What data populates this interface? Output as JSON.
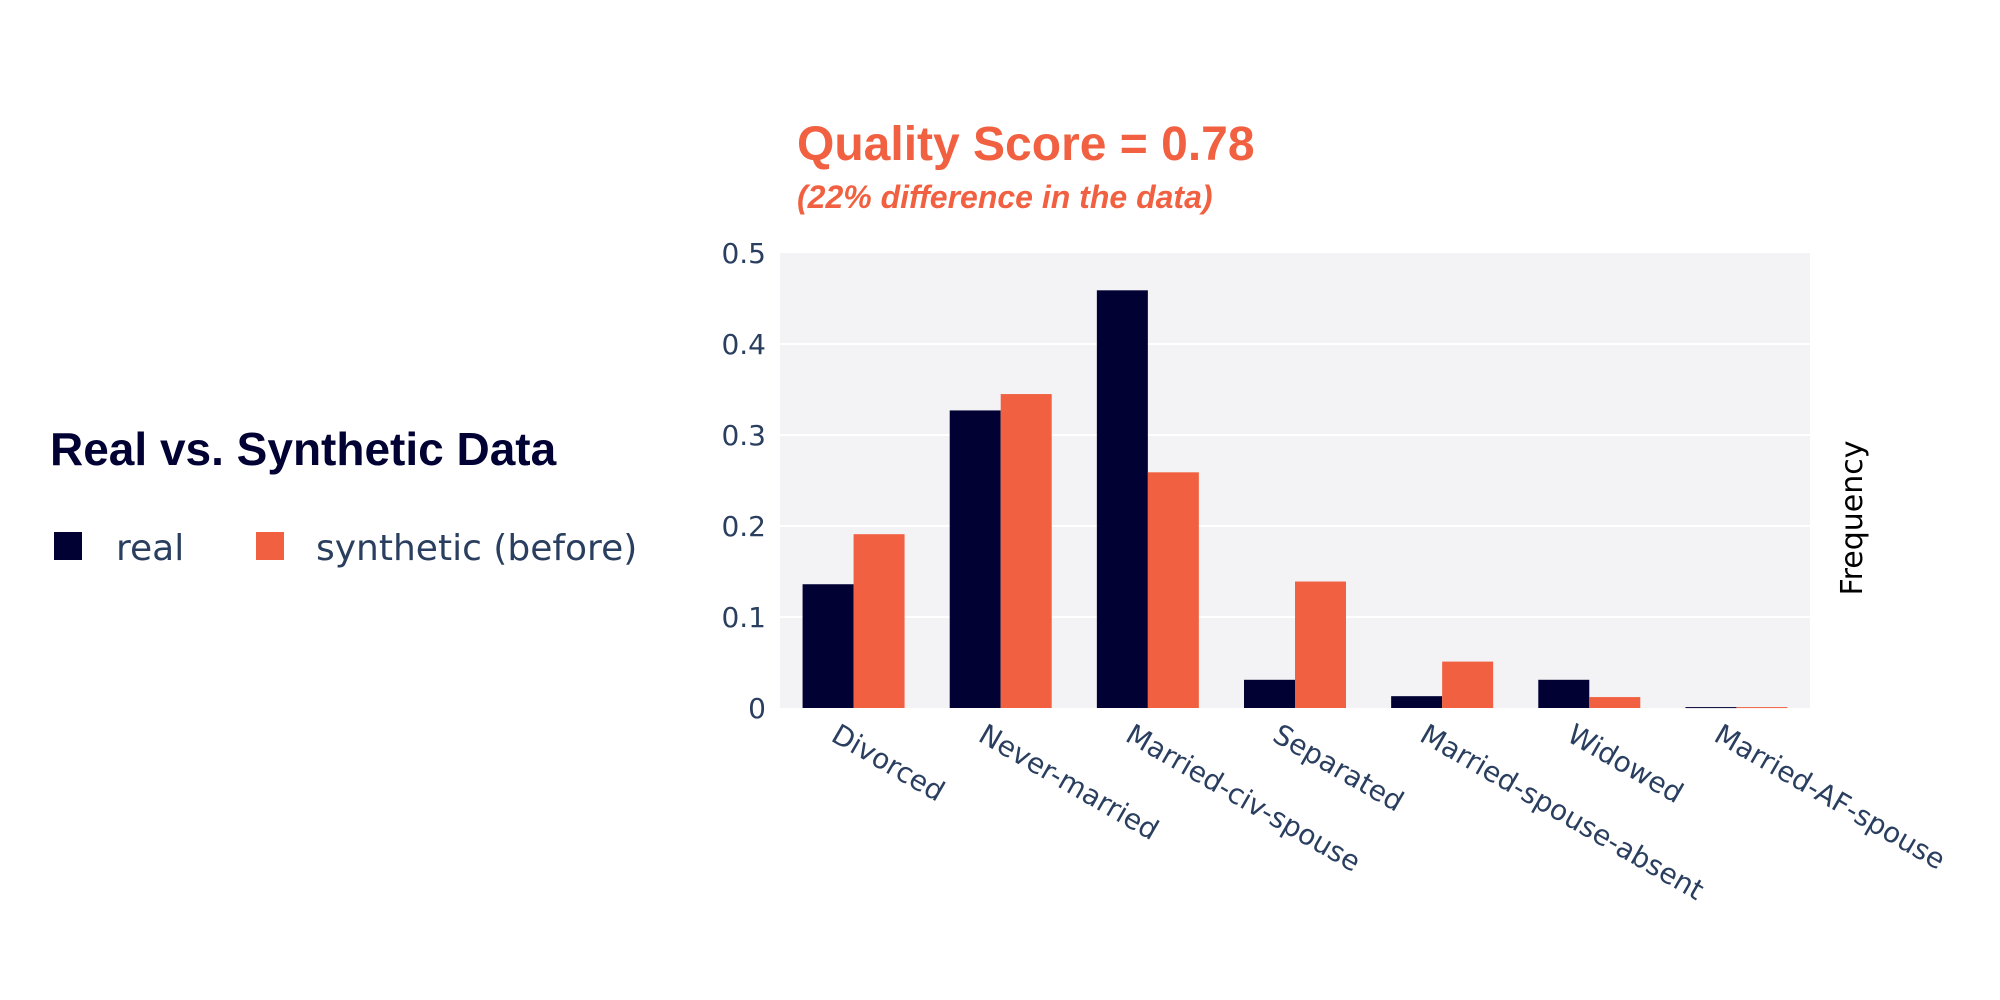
{
  "colors": {
    "real": "#020134",
    "synthetic": "#F16141",
    "plot_bg": "#F3F3F6",
    "grid": "#FFFFFF",
    "text": "#2A3F5F",
    "title_dark": "#020134"
  },
  "legend": {
    "title": "Real vs. Synthetic Data",
    "items": [
      "real",
      "synthetic (before)"
    ]
  },
  "chart_data": {
    "type": "bar",
    "title": "Quality Score = 0.78",
    "subtitle": "(22% difference in the data)",
    "xlabel": "",
    "ylabel": "Frequency",
    "ylim": [
      0,
      0.5
    ],
    "yticks": [
      0,
      0.1,
      0.2,
      0.3,
      0.4,
      0.5
    ],
    "ytick_labels": [
      "0",
      "0.1",
      "0.2",
      "0.3",
      "0.4",
      "0.5"
    ],
    "categories": [
      "Divorced",
      "Never-married",
      "Married-civ-spouse",
      "Separated",
      "Married-spouse-absent",
      "Widowed",
      "Married-AF-spouse"
    ],
    "series": [
      {
        "name": "real",
        "values": [
          0.136,
          0.327,
          0.459,
          0.031,
          0.013,
          0.031,
          0.001
        ]
      },
      {
        "name": "synthetic (before)",
        "values": [
          0.191,
          0.345,
          0.259,
          0.139,
          0.051,
          0.012,
          0.001
        ]
      }
    ],
    "grid": true,
    "legend_position": "left"
  }
}
